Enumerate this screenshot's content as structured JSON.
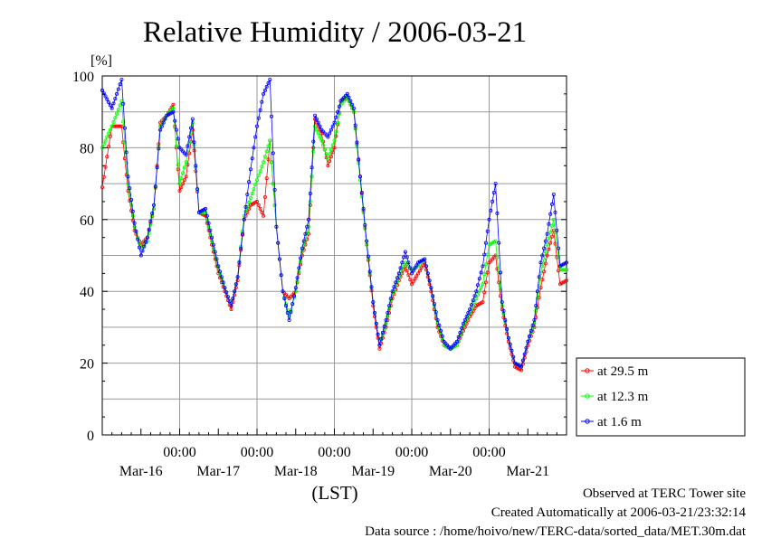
{
  "title": "Relative Humidity / 2006-03-21",
  "footer": {
    "observed": "Observed at TERC Tower site",
    "created": "Created Automatically at 2006-03-21/23:32:14",
    "source": "Data source : /home/hoivo/new/TERC-data/sorted_data/MET.30m.dat"
  },
  "colors": {
    "s1": "#ff0000",
    "s2": "#00ff00",
    "s3": "#0000ff",
    "grid": "#9a9a9a"
  },
  "chart_data": {
    "type": "line",
    "title": "Relative Humidity / 2006-03-21",
    "ylabel": "[%]",
    "xlabel": "(LST)",
    "ylim": [
      0,
      100
    ],
    "xlim_hours": [
      0,
      144
    ],
    "yticks": [
      0,
      20,
      40,
      60,
      80,
      100
    ],
    "xtick_hours": [
      24,
      48,
      72,
      96,
      120
    ],
    "xtick_label": "00:00",
    "date_labels": [
      "Mar-16",
      "Mar-17",
      "Mar-18",
      "Mar-19",
      "Mar-20",
      "Mar-21"
    ],
    "grid": true,
    "legend_position": "right",
    "x_hours": [
      0,
      3,
      6,
      8,
      10,
      12,
      14,
      16,
      18,
      20,
      22,
      24,
      26,
      28,
      30,
      32,
      34,
      36,
      38,
      40,
      42,
      44,
      46,
      48,
      50,
      52,
      54,
      56,
      58,
      60,
      62,
      64,
      66,
      68,
      70,
      72,
      74,
      76,
      78,
      80,
      82,
      84,
      86,
      88,
      90,
      92,
      94,
      96,
      98,
      100,
      102,
      104,
      106,
      108,
      110,
      112,
      114,
      116,
      118,
      120,
      122,
      124,
      126,
      128,
      130,
      132,
      134,
      136,
      138,
      140,
      142,
      144
    ],
    "series": [
      {
        "name": "at 29.5 m",
        "values": [
          69,
          86,
          86,
          68,
          57,
          53,
          55,
          63,
          87,
          89,
          92,
          68,
          72,
          85,
          62,
          61,
          53,
          45,
          40,
          35,
          43,
          60,
          64,
          65,
          61,
          82,
          58,
          40,
          38,
          40,
          50,
          56,
          88,
          84,
          75,
          80,
          93,
          94,
          90,
          72,
          53,
          36,
          24,
          30,
          38,
          43,
          47,
          42,
          45,
          48,
          40,
          30,
          25,
          24,
          25,
          29,
          33,
          36,
          37,
          48,
          50,
          35,
          26,
          19,
          18,
          25,
          30,
          41,
          50,
          57,
          42,
          43
        ]
      },
      {
        "name": "at 12.3 m",
        "values": [
          80,
          86,
          93,
          70,
          58,
          52,
          54,
          63,
          86,
          89,
          91,
          70,
          76,
          87,
          62,
          62,
          54,
          46,
          41,
          36,
          44,
          61,
          66,
          71,
          76,
          82,
          58,
          40,
          33,
          40,
          51,
          58,
          86,
          82,
          77,
          82,
          92,
          94,
          90,
          71,
          53,
          37,
          25,
          31,
          39,
          44,
          48,
          46,
          47,
          49,
          41,
          31,
          25,
          24,
          25,
          30,
          34,
          38,
          42,
          53,
          54,
          36,
          27,
          20,
          19,
          26,
          31,
          45,
          53,
          60,
          46,
          46
        ]
      },
      {
        "name": "at 1.6 m",
        "values": [
          96,
          91,
          99,
          72,
          59,
          50,
          55,
          64,
          85,
          89,
          90,
          80,
          78,
          88,
          62,
          63,
          55,
          47,
          41,
          36,
          44,
          60,
          74,
          86,
          95,
          99,
          58,
          40,
          32,
          41,
          52,
          60,
          89,
          85,
          83,
          87,
          93,
          95,
          91,
          72,
          54,
          37,
          25,
          32,
          40,
          45,
          51,
          45,
          48,
          49,
          41,
          32,
          26,
          24,
          26,
          31,
          35,
          40,
          47,
          60,
          70,
          37,
          27,
          20,
          19,
          26,
          32,
          48,
          56,
          67,
          47,
          48
        ]
      }
    ]
  }
}
